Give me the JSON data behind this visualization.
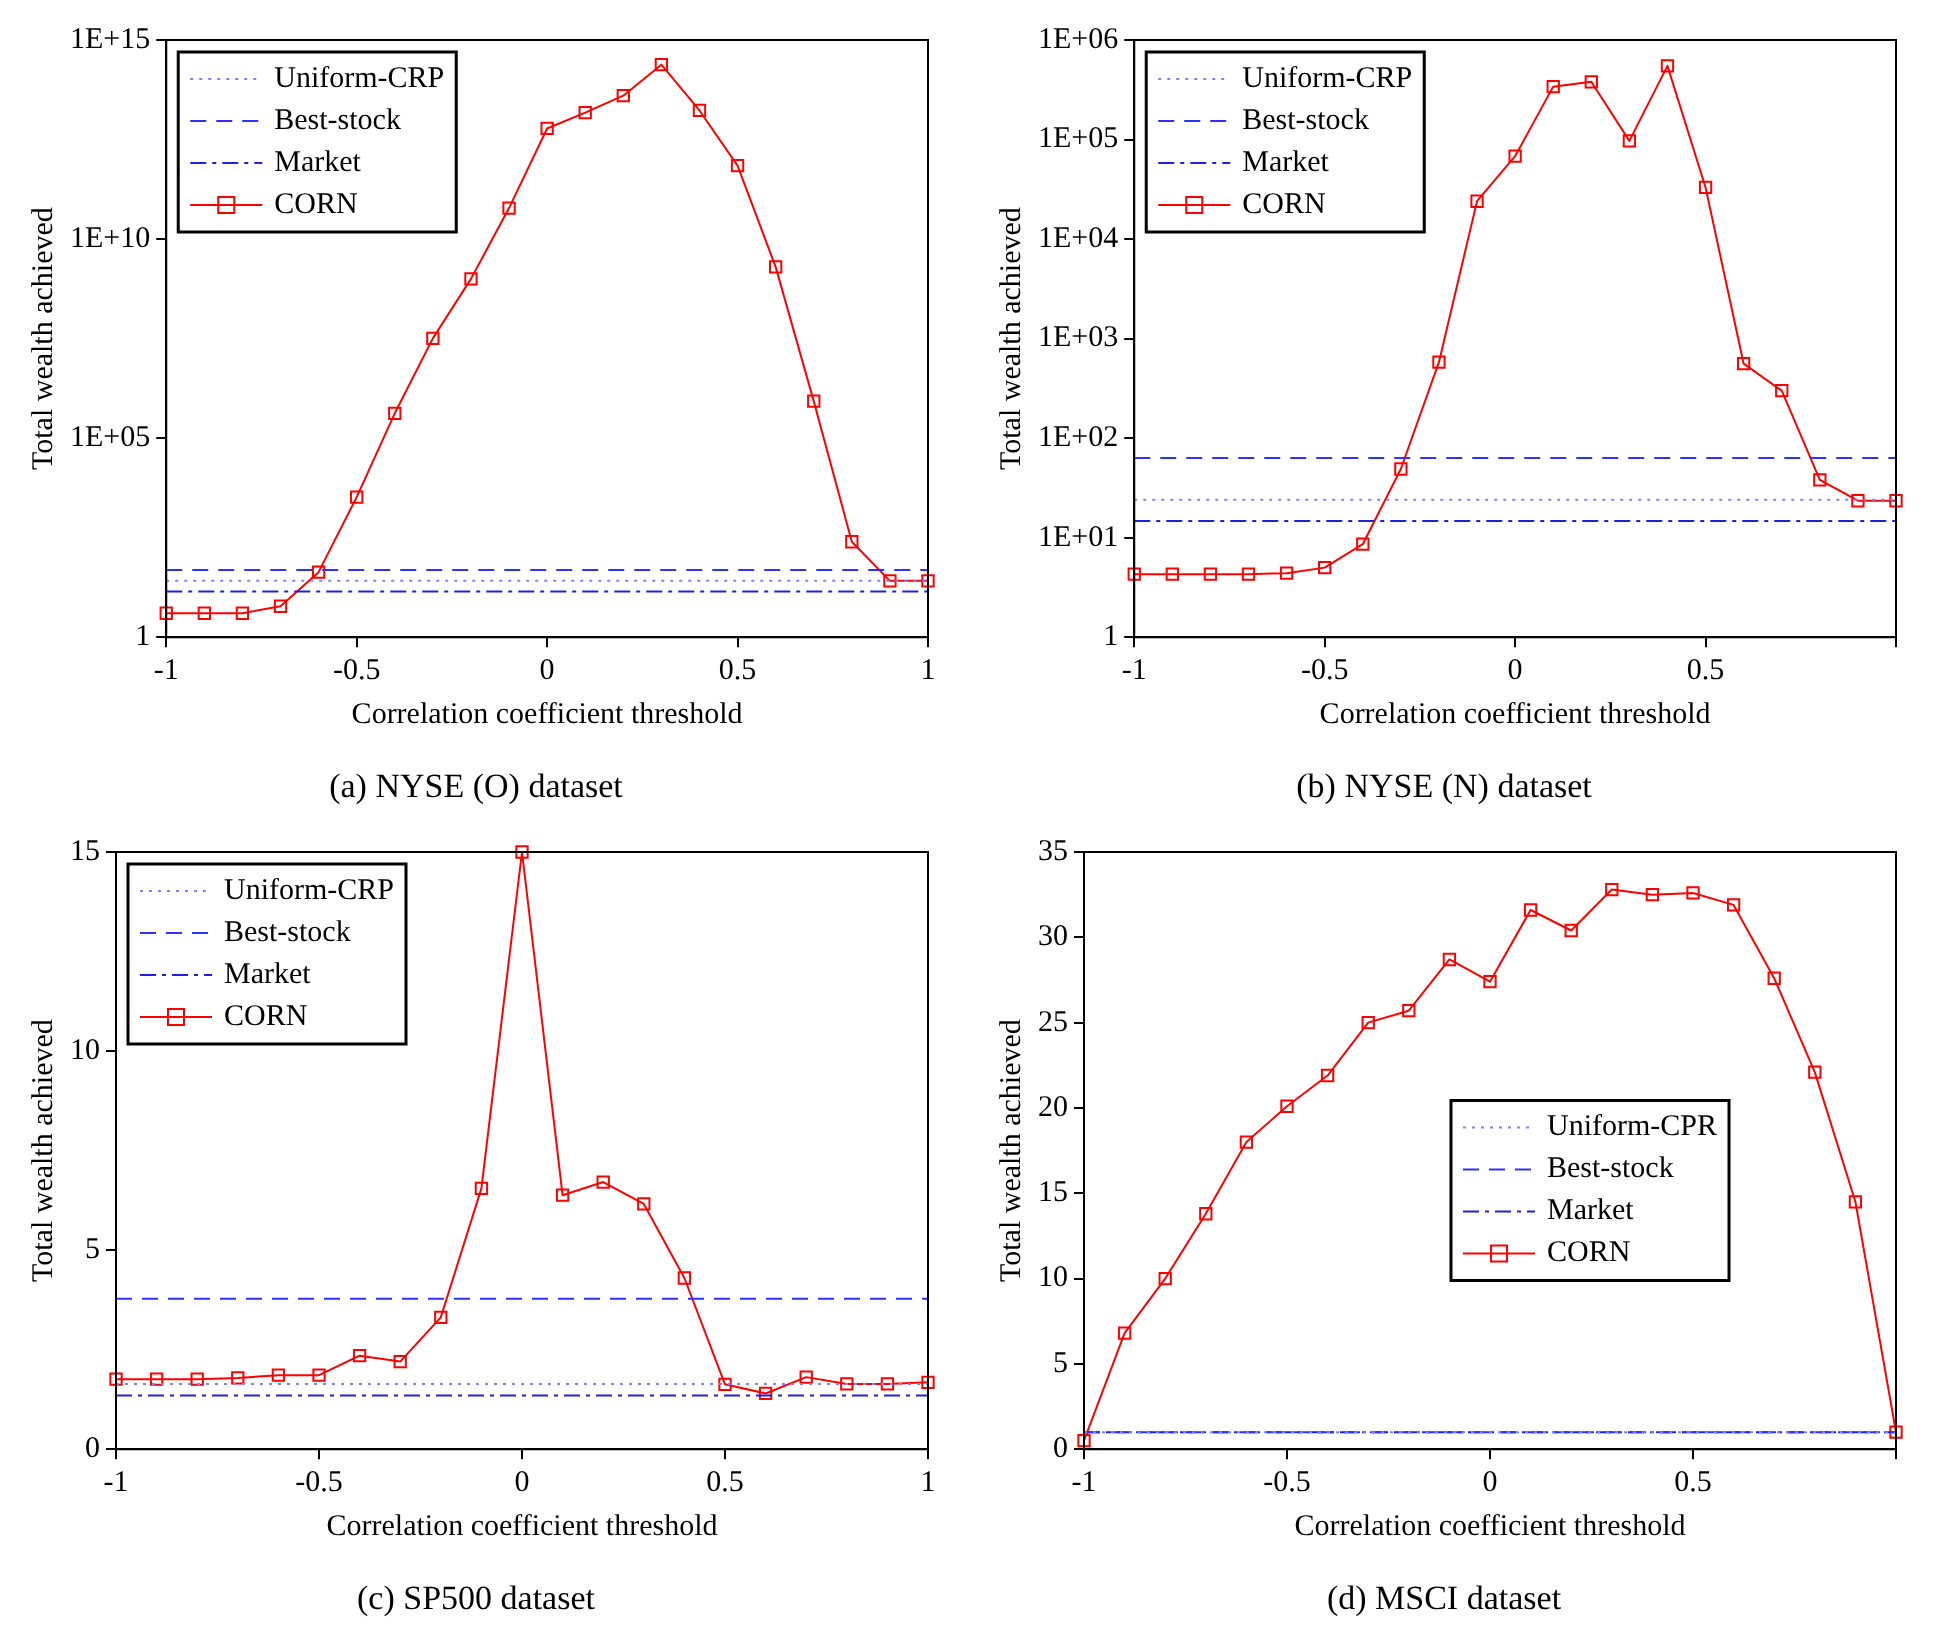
{
  "chart_data": [
    {
      "type": "line",
      "title": "(a) NYSE (O) dataset",
      "xlabel": "Correlation coefficient threshold",
      "ylabel": "Total wealth achieved",
      "log": "y",
      "grid": false,
      "legend": "top left",
      "x": [
        -1,
        -0.9,
        -0.8,
        -0.7,
        -0.6,
        -0.5,
        -0.4,
        -0.3,
        -0.2,
        -0.1,
        0,
        0.1,
        0.2,
        0.3,
        0.4,
        0.5,
        0.6,
        0.7,
        0.8,
        0.9,
        1
      ],
      "xlim": [
        -1,
        1
      ],
      "xticks": [
        -1,
        -0.5,
        0,
        0.5,
        1
      ],
      "ylim": [
        1,
        1000000000000000.0
      ],
      "yticks": [
        1,
        {
          "value": 100000,
          "label": "1E+05"
        },
        {
          "value": 10000000000,
          "label": "1E+10"
        },
        {
          "value": 1000000000000000.0,
          "label": "1E+15"
        }
      ],
      "series": [
        {
          "name": "Uniform-CRP",
          "color": "#8080ff",
          "line_style": "dotted",
          "marker": "none",
          "values": [
            26,
            26,
            26,
            26,
            26,
            26,
            26,
            26,
            26,
            26,
            26,
            26,
            26,
            26,
            26,
            26,
            26,
            26,
            26,
            26,
            26
          ]
        },
        {
          "name": "Best-stock",
          "color": "#3030ff",
          "line_style": "dashed",
          "marker": "none",
          "values": [
            49,
            49,
            49,
            49,
            49,
            49,
            49,
            49,
            49,
            49,
            49,
            49,
            49,
            49,
            49,
            49,
            49,
            49,
            49,
            49,
            49
          ]
        },
        {
          "name": "Market",
          "color": "#2020e0",
          "line_style": "dashdot",
          "marker": "none",
          "values": [
            14,
            14,
            14,
            14,
            14,
            14,
            14,
            14,
            14,
            14,
            14,
            14,
            14,
            14,
            14,
            14,
            14,
            14,
            14,
            14,
            14
          ]
        },
        {
          "name": "CORN",
          "color": "#ff0000",
          "line_style": "solid",
          "marker": "square",
          "values": [
            4,
            4,
            4,
            6,
            43,
            3300,
            420000,
            32000000,
            1000000000,
            60000000000,
            6000000000000,
            15000000000000,
            40000000000000,
            240000000000000,
            17000000000000,
            700000000000,
            2000000000,
            850000,
            250,
            26,
            26
          ]
        }
      ]
    },
    {
      "type": "line",
      "title": "(b) NYSE (N) dataset",
      "xlabel": "Correlation coefficient threshold",
      "ylabel": "Total wealth achieved",
      "log": "y",
      "grid": false,
      "legend": "top left",
      "x": [
        -1,
        -0.9,
        -0.8,
        -0.7,
        -0.6,
        -0.5,
        -0.4,
        -0.3,
        -0.2,
        -0.1,
        0,
        0.1,
        0.2,
        0.3,
        0.4,
        0.5,
        0.6,
        0.7,
        0.8,
        0.9,
        1
      ],
      "xlim": [
        -1,
        1
      ],
      "xticks": [
        -1,
        -0.5,
        0,
        0.5,
        {
          "value": 1,
          "label": null
        }
      ],
      "ylim": [
        1,
        1000000
      ],
      "yticks": [
        1,
        {
          "value": 10,
          "label": "1E+01"
        },
        {
          "value": 100,
          "label": "1E+02"
        },
        {
          "value": 1000,
          "label": "1E+03"
        },
        {
          "value": 10000,
          "label": "1E+04"
        },
        {
          "value": 100000,
          "label": "1E+05"
        },
        {
          "value": 1000000,
          "label": "1E+06"
        }
      ],
      "series": [
        {
          "name": "Uniform-CRP",
          "color": "#8080ff",
          "line_style": "dotted",
          "marker": "none",
          "values": [
            24,
            24,
            24,
            24,
            24,
            24,
            24,
            24,
            24,
            24,
            24,
            24,
            24,
            24,
            24,
            24,
            24,
            24,
            24,
            24,
            24
          ]
        },
        {
          "name": "Best-stock",
          "color": "#3030ff",
          "line_style": "dashed",
          "marker": "none",
          "values": [
            63,
            63,
            63,
            63,
            63,
            63,
            63,
            63,
            63,
            63,
            63,
            63,
            63,
            63,
            63,
            63,
            63,
            63,
            63,
            63,
            63
          ]
        },
        {
          "name": "Market",
          "color": "#2020e0",
          "line_style": "dashdot",
          "marker": "none",
          "values": [
            14.7,
            14.7,
            14.7,
            14.7,
            14.7,
            14.7,
            14.7,
            14.7,
            14.7,
            14.7,
            14.7,
            14.7,
            14.7,
            14.7,
            14.7,
            14.7,
            14.7,
            14.7,
            14.7,
            14.7,
            14.7
          ]
        },
        {
          "name": "CORN",
          "color": "#ff0000",
          "line_style": "solid",
          "marker": "square",
          "values": [
            4.3,
            4.3,
            4.3,
            4.3,
            4.4,
            5,
            8.6,
            49,
            580,
            24000,
            68000,
            340000,
            380000,
            97000,
            550000,
            33000,
            560,
            300,
            38,
            23.5,
            23.5
          ]
        }
      ]
    },
    {
      "type": "line",
      "title": "(c) SP500 dataset",
      "xlabel": "Correlation coefficient threshold",
      "ylabel": "Total wealth achieved",
      "grid": false,
      "legend": "top left",
      "x": [
        -1,
        -0.9,
        -0.8,
        -0.7,
        -0.6,
        -0.5,
        -0.4,
        -0.3,
        -0.2,
        -0.1,
        0,
        0.1,
        0.2,
        0.3,
        0.4,
        0.5,
        0.6,
        0.7,
        0.8,
        0.9,
        1
      ],
      "xlim": [
        -1,
        1
      ],
      "xticks": [
        -1,
        -0.5,
        0,
        0.5,
        1
      ],
      "ylim": [
        0,
        15
      ],
      "yticks": [
        0,
        5,
        10,
        15
      ],
      "series": [
        {
          "name": "Uniform-CRP",
          "color": "#8080ff",
          "line_style": "dotted",
          "marker": "none",
          "values": [
            1.64,
            1.64,
            1.64,
            1.64,
            1.64,
            1.64,
            1.64,
            1.64,
            1.64,
            1.64,
            1.64,
            1.64,
            1.64,
            1.64,
            1.64,
            1.64,
            1.64,
            1.64,
            1.64,
            1.64,
            1.64
          ]
        },
        {
          "name": "Best-stock",
          "color": "#3030ff",
          "line_style": "dashed",
          "marker": "none",
          "values": [
            3.78,
            3.78,
            3.78,
            3.78,
            3.78,
            3.78,
            3.78,
            3.78,
            3.78,
            3.78,
            3.78,
            3.78,
            3.78,
            3.78,
            3.78,
            3.78,
            3.78,
            3.78,
            3.78,
            3.78,
            3.78
          ]
        },
        {
          "name": "Market",
          "color": "#2020e0",
          "line_style": "dashdot",
          "marker": "none",
          "values": [
            1.35,
            1.35,
            1.35,
            1.35,
            1.35,
            1.35,
            1.35,
            1.35,
            1.35,
            1.35,
            1.35,
            1.35,
            1.35,
            1.35,
            1.35,
            1.35,
            1.35,
            1.35,
            1.35,
            1.35,
            1.35
          ]
        },
        {
          "name": "CORN",
          "color": "#ff0000",
          "line_style": "solid",
          "marker": "square",
          "values": [
            1.76,
            1.76,
            1.76,
            1.79,
            1.86,
            1.86,
            2.35,
            2.2,
            3.31,
            6.55,
            15,
            6.38,
            6.71,
            6.16,
            4.3,
            1.63,
            1.4,
            1.81,
            1.64,
            1.64,
            1.68
          ]
        }
      ]
    },
    {
      "type": "line",
      "title": "(d) MSCI dataset",
      "xlabel": "Correlation coefficient threshold",
      "ylabel": "Total wealth achieved",
      "grid": false,
      "legend": "center",
      "x": [
        -1,
        -0.9,
        -0.8,
        -0.7,
        -0.6,
        -0.5,
        -0.4,
        -0.3,
        -0.2,
        -0.1,
        0,
        0.1,
        0.2,
        0.3,
        0.4,
        0.5,
        0.6,
        0.7,
        0.8,
        0.9,
        1
      ],
      "xlim": [
        -1,
        1
      ],
      "xticks": [
        -1,
        -0.5,
        0,
        0.5,
        {
          "value": 1,
          "label": null
        }
      ],
      "ylim": [
        0,
        35
      ],
      "yticks": [
        0,
        5,
        10,
        15,
        20,
        25,
        30,
        35
      ],
      "series": [
        {
          "name": "Uniform-CPR",
          "color": "#8080ff",
          "line_style": "dotted",
          "marker": "none",
          "values": [
            1,
            1,
            1,
            1,
            1,
            1,
            1,
            1,
            1,
            1,
            1,
            1,
            1,
            1,
            1,
            1,
            1,
            1,
            1,
            1,
            1
          ]
        },
        {
          "name": "Best-stock",
          "color": "#3030ff",
          "line_style": "dashed",
          "marker": "none",
          "values": [
            1,
            1,
            1,
            1,
            1,
            1,
            1,
            1,
            1,
            1,
            1,
            1,
            1,
            1,
            1,
            1,
            1,
            1,
            1,
            1,
            1
          ]
        },
        {
          "name": "Market",
          "color": "#2020e0",
          "line_style": "dashdot",
          "marker": "none",
          "values": [
            1,
            1,
            1,
            1,
            1,
            1,
            1,
            1,
            1,
            1,
            1,
            1,
            1,
            1,
            1,
            1,
            1,
            1,
            1,
            1,
            1
          ]
        },
        {
          "name": "CORN",
          "color": "#ff0000",
          "line_style": "solid",
          "marker": "square",
          "values": [
            0.5,
            6.8,
            10,
            13.8,
            18,
            20.1,
            21.9,
            25,
            25.7,
            28.7,
            27.4,
            31.6,
            30.4,
            32.8,
            32.5,
            32.6,
            31.9,
            27.6,
            22.1,
            14.5,
            1
          ]
        }
      ]
    }
  ]
}
